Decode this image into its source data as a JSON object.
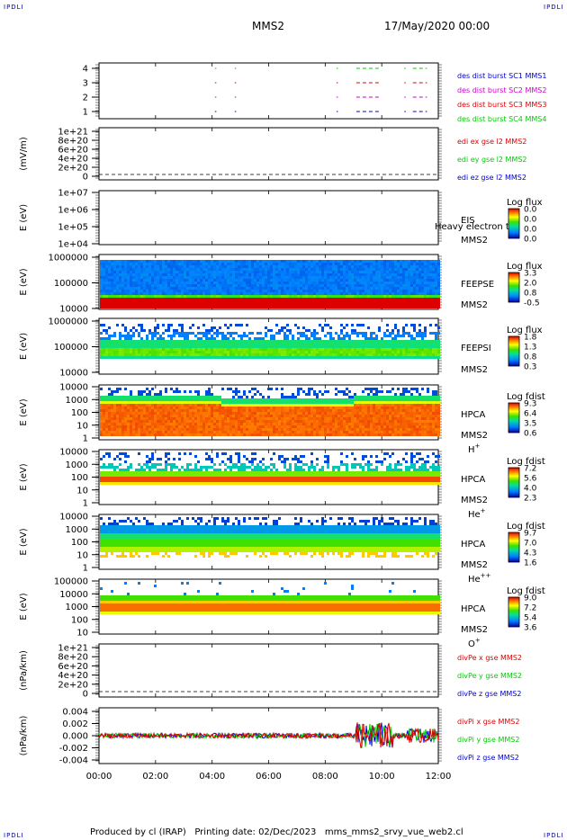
{
  "header": {
    "corner_label": "IPDLI",
    "title": "MMS2",
    "date": "17/May/2020 00:00"
  },
  "footer": {
    "text": "Produced by cl (IRAP)   Printing date: 02/Dec/2023   mms_mms2_srvy_vue_web2.cl"
  },
  "colors": {
    "blue": "#0000cc",
    "red": "#dd0000",
    "green": "#00cc00",
    "magenta": "#cc00cc"
  },
  "time_axis": [
    "00:00",
    "02:00",
    "04:00",
    "06:00",
    "08:00",
    "10:00",
    "12:00"
  ],
  "chart_data": [
    {
      "type": "line",
      "id": "burst",
      "ylabel": "",
      "yticks": [
        "4",
        "3",
        "2",
        "1"
      ],
      "series": [
        {
          "name": "des dist burst SC1 MMS1",
          "color": "#0000cc",
          "level": 1
        },
        {
          "name": "des dist burst SC2 MMS2",
          "color": "#cc00cc",
          "level": 2
        },
        {
          "name": "des dist burst SC3 MMS3",
          "color": "#dd0000",
          "level": 3
        },
        {
          "name": "des dist burst SC4 MMS4",
          "color": "#00cc00",
          "level": 4
        }
      ],
      "intervals_hours": [
        [
          4.1,
          4.15
        ],
        [
          4.8,
          4.85
        ],
        [
          8.4,
          8.45
        ],
        [
          9.1,
          9.9
        ],
        [
          10.8,
          10.85
        ],
        [
          11.1,
          11.6
        ]
      ]
    },
    {
      "type": "line",
      "id": "edi",
      "ylabel": "(mV/m)",
      "yticks": [
        "1e+21",
        "8e+20",
        "6e+20",
        "4e+20",
        "2e+20",
        "0"
      ],
      "series": [
        {
          "name": "edi ex gse l2 MMS2",
          "color": "#dd0000"
        },
        {
          "name": "edi ey gse l2 MMS2",
          "color": "#00cc00"
        },
        {
          "name": "edi ez gse l2 MMS2",
          "color": "#0000cc"
        }
      ]
    },
    {
      "type": "heatmap",
      "id": "eis",
      "ylabel": "E (eV)",
      "yticks": [
        "1e+07",
        "1e+06",
        "1e+05",
        "1e+04"
      ],
      "instrument": "EIS",
      "spacecraft": "MMS2",
      "species_label": "Heavy electron tof",
      "colorbar_title": "Log flux",
      "colorbar_ticks": [
        "0.0",
        "0.0",
        "0.0",
        "0.0"
      ]
    },
    {
      "type": "heatmap",
      "id": "feepse",
      "ylabel": "E (eV)",
      "yticks": [
        "1000000",
        "100000",
        "10000"
      ],
      "instrument": "FEEPSE",
      "spacecraft": "MMS2",
      "colorbar_title": "Log flux",
      "colorbar_ticks": [
        "3.3",
        "2.0",
        "0.8",
        "-0.5"
      ]
    },
    {
      "type": "heatmap",
      "id": "feepsi",
      "ylabel": "E (eV)",
      "yticks": [
        "1000000",
        "100000",
        "10000"
      ],
      "instrument": "FEEPSI",
      "spacecraft": "MMS2",
      "colorbar_title": "Log flux",
      "colorbar_ticks": [
        "1.8",
        "1.3",
        "0.8",
        "0.3"
      ]
    },
    {
      "type": "heatmap",
      "id": "hpca_h",
      "ylabel": "E (eV)",
      "yticks": [
        "10000",
        "1000",
        "100",
        "10",
        "1"
      ],
      "instrument": "HPCA",
      "spacecraft": "MMS2",
      "species_base": "H",
      "species_sup": "+",
      "colorbar_title": "Log fdist",
      "colorbar_ticks": [
        "9.3",
        "6.4",
        "3.5",
        "0.6"
      ]
    },
    {
      "type": "heatmap",
      "id": "hpca_he",
      "ylabel": "E (eV)",
      "yticks": [
        "10000",
        "1000",
        "100",
        "10",
        "1"
      ],
      "instrument": "HPCA",
      "spacecraft": "MMS2",
      "species_base": "He",
      "species_sup": "+",
      "colorbar_title": "Log fdist",
      "colorbar_ticks": [
        "7.2",
        "5.6",
        "4.0",
        "2.3"
      ]
    },
    {
      "type": "heatmap",
      "id": "hpca_hepp",
      "ylabel": "E (eV)",
      "yticks": [
        "10000",
        "1000",
        "100",
        "10",
        "1"
      ],
      "instrument": "HPCA",
      "spacecraft": "MMS2",
      "species_base": "He",
      "species_sup": "++",
      "colorbar_title": "Log fdist",
      "colorbar_ticks": [
        "9.7",
        "7.0",
        "4.3",
        "1.6"
      ]
    },
    {
      "type": "heatmap",
      "id": "hpca_o",
      "ylabel": "E (eV)",
      "yticks": [
        "100000",
        "10000",
        "1000",
        "100",
        "10"
      ],
      "instrument": "HPCA",
      "spacecraft": "MMS2",
      "species_base": "O",
      "species_sup": "+",
      "colorbar_title": "Log fdist",
      "colorbar_ticks": [
        "9.0",
        "7.2",
        "5.4",
        "3.6"
      ]
    },
    {
      "type": "line",
      "id": "divpe",
      "ylabel": "(nPa/km)",
      "yticks": [
        "1e+21",
        "8e+20",
        "6e+20",
        "4e+20",
        "2e+20",
        "0"
      ],
      "series": [
        {
          "name": "divPe x gse MMS2",
          "color": "#dd0000"
        },
        {
          "name": "divPe y gse MMS2",
          "color": "#00cc00"
        },
        {
          "name": "divPe z gse MMS2",
          "color": "#0000cc"
        }
      ]
    },
    {
      "type": "line",
      "id": "divpi",
      "ylabel": "(nPa/km)",
      "yticks": [
        "0.004",
        "0.002",
        "0.000",
        "-0.002",
        "-0.004"
      ],
      "ylim": [
        -0.0045,
        0.0045
      ],
      "series": [
        {
          "name": "divPi x gse MMS2",
          "color": "#dd0000"
        },
        {
          "name": "divPi y gse MMS2",
          "color": "#00cc00"
        },
        {
          "name": "divPi z gse MMS2",
          "color": "#0000cc"
        }
      ]
    }
  ]
}
